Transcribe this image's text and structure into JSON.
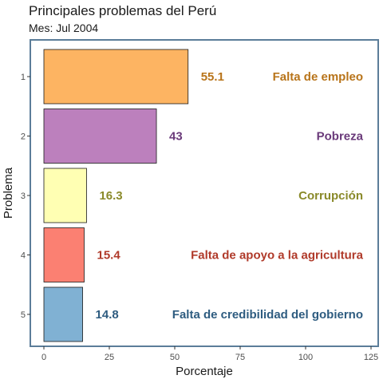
{
  "chart_data": {
    "type": "bar",
    "orientation": "horizontal",
    "title": "Principales problemas del Perú",
    "subtitle": "Mes: Jul 2004",
    "xlabel": "Porcentaje",
    "ylabel": "Problema",
    "xlim": [
      0,
      125
    ],
    "x_ticks": [
      0,
      25,
      50,
      75,
      100,
      125
    ],
    "categories": [
      "1",
      "2",
      "3",
      "4",
      "5"
    ],
    "values": [
      55.1,
      43,
      16.3,
      15.4,
      14.8
    ],
    "value_labels": [
      "55.1",
      "43",
      "16.3",
      "15.4",
      "14.8"
    ],
    "problem_labels": [
      "Falta de empleo",
      "Pobreza",
      "Corrupción",
      "Falta de apoyo a la agricultura",
      "Falta de credibilidad del gobierno"
    ],
    "bar_colors": [
      "#FDB462",
      "#BC80BD",
      "#FFFFB3",
      "#FB8072",
      "#80B1D3"
    ],
    "label_colors": [
      "#B8741A",
      "#6A3A7A",
      "#8A8A2A",
      "#B03A2A",
      "#2E5C80"
    ],
    "panel_border_color": "#5b7d99",
    "grid": false
  }
}
